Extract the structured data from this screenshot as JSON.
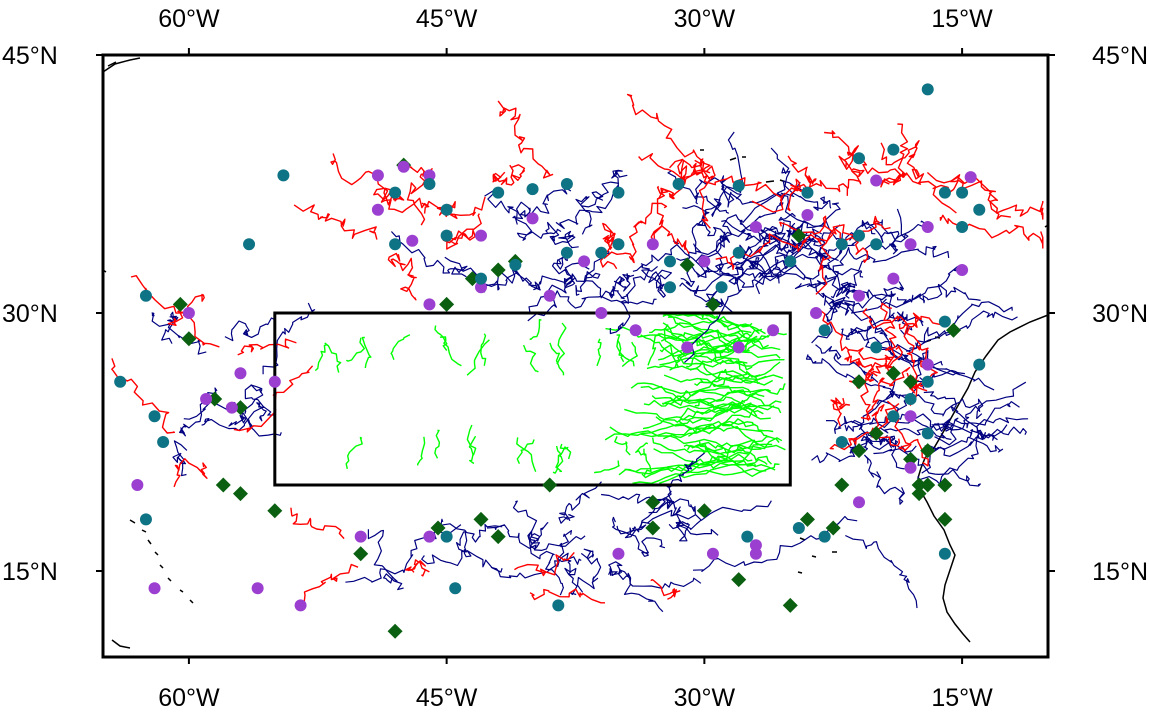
{
  "map": {
    "axes": {
      "lon_ticks": [
        {
          "lon": -60,
          "label": "60°W"
        },
        {
          "lon": -45,
          "label": "45°W"
        },
        {
          "lon": -30,
          "label": "30°W"
        },
        {
          "lon": -15,
          "label": "15°W"
        }
      ],
      "lat_ticks": [
        {
          "lat": 45,
          "label": "45°N"
        },
        {
          "lat": 30,
          "label": "30°N"
        },
        {
          "lat": 15,
          "label": "15°N"
        }
      ],
      "lon_range": [
        -65,
        -10
      ],
      "lat_range": [
        10,
        45
      ]
    },
    "release_box": {
      "lon_min": -55,
      "lon_max": -25,
      "lat_min": 20,
      "lat_max": 30,
      "color": "#000000"
    },
    "colors": {
      "track_red": "#ff0000",
      "track_navy": "#000080",
      "track_green": "#00ff00",
      "end_teal": "#0e7384",
      "end_purple": "#9b3fd0",
      "end_diamond": "#0a6010",
      "coast": "#000000"
    },
    "markers": {
      "teal_circles": [
        [
          -62.5,
          31
        ],
        [
          -61.5,
          22.5
        ],
        [
          -62,
          24
        ],
        [
          -64,
          26
        ],
        [
          -56.5,
          34
        ],
        [
          -54.5,
          38
        ],
        [
          -48,
          37
        ],
        [
          -46,
          37.5
        ],
        [
          -45,
          36
        ],
        [
          -42,
          37
        ],
        [
          -40,
          37.2
        ],
        [
          -38,
          37.5
        ],
        [
          -35,
          37
        ],
        [
          -31.5,
          37.5
        ],
        [
          -28,
          37.4
        ],
        [
          -24,
          37
        ],
        [
          -21,
          39
        ],
        [
          -19,
          39.5
        ],
        [
          -17,
          43
        ],
        [
          -16,
          37
        ],
        [
          -15,
          37
        ],
        [
          -14,
          36
        ],
        [
          -15,
          35
        ],
        [
          -20,
          34
        ],
        [
          -21,
          34.5
        ],
        [
          -22,
          34
        ],
        [
          -25,
          33
        ],
        [
          -28,
          33.5
        ],
        [
          -32,
          33
        ],
        [
          -36,
          33.5
        ],
        [
          -38,
          33.5
        ],
        [
          -41,
          32.8
        ],
        [
          -43,
          32
        ],
        [
          -45,
          34.5
        ],
        [
          -48,
          34
        ],
        [
          -35,
          34
        ],
        [
          -32,
          31.5
        ],
        [
          -29,
          31.5
        ],
        [
          -23,
          29
        ],
        [
          -20,
          28
        ],
        [
          -17,
          26
        ],
        [
          -18,
          25
        ],
        [
          -16,
          29.5
        ],
        [
          -14,
          27
        ],
        [
          -17,
          23
        ],
        [
          -19,
          24
        ],
        [
          -22,
          22.5
        ],
        [
          -45,
          17
        ],
        [
          -44.5,
          14
        ],
        [
          -38.5,
          13
        ],
        [
          -27.5,
          17
        ],
        [
          -24.5,
          17.5
        ],
        [
          -23,
          17
        ],
        [
          -16,
          16
        ],
        [
          -62.5,
          18
        ]
      ],
      "purple_circles": [
        [
          -60,
          30
        ],
        [
          -57,
          26.5
        ],
        [
          -57.5,
          24.5
        ],
        [
          -63,
          20
        ],
        [
          -62,
          14
        ],
        [
          -56,
          14
        ],
        [
          -53.5,
          13
        ],
        [
          -50,
          17
        ],
        [
          -46,
          17
        ],
        [
          -46,
          38
        ],
        [
          -47.5,
          38.5
        ],
        [
          -49,
          38
        ],
        [
          -49,
          36
        ],
        [
          -47,
          34.2
        ],
        [
          -43,
          34.5
        ],
        [
          -40,
          35.5
        ],
        [
          -37,
          33
        ],
        [
          -33,
          34
        ],
        [
          -30,
          33
        ],
        [
          -27,
          35
        ],
        [
          -24,
          35.7
        ],
        [
          -20,
          37.7
        ],
        [
          -18,
          34
        ],
        [
          -17,
          35
        ],
        [
          -14.5,
          37.9
        ],
        [
          -15,
          32.5
        ],
        [
          -19,
          32
        ],
        [
          -21,
          31
        ],
        [
          -23.5,
          30
        ],
        [
          -26,
          29
        ],
        [
          -28,
          28
        ],
        [
          -31,
          28
        ],
        [
          -34,
          29
        ],
        [
          -36,
          30
        ],
        [
          -39,
          31
        ],
        [
          -43,
          31.5
        ],
        [
          -46,
          30.5
        ],
        [
          -18,
          24
        ],
        [
          -17,
          27
        ],
        [
          -18,
          21
        ],
        [
          -21,
          19
        ],
        [
          -35,
          16
        ],
        [
          -29.5,
          16
        ],
        [
          -27,
          16
        ],
        [
          -27,
          16.5
        ],
        [
          -55,
          26
        ],
        [
          -59,
          25
        ]
      ],
      "green_diamonds": [
        [
          -60,
          28.5
        ],
        [
          -58.5,
          25
        ],
        [
          -57,
          24.5
        ],
        [
          -58,
          20
        ],
        [
          -57,
          19.5
        ],
        [
          -55,
          18.5
        ],
        [
          -50,
          16
        ],
        [
          -48,
          11.5
        ],
        [
          -45.5,
          17.5
        ],
        [
          -43,
          18
        ],
        [
          -42,
          17
        ],
        [
          -39,
          20
        ],
        [
          -33,
          19
        ],
        [
          -33,
          17.5
        ],
        [
          -30,
          18.5
        ],
        [
          -28,
          14.5
        ],
        [
          -25,
          13
        ],
        [
          -24,
          18
        ],
        [
          -22.5,
          17.5
        ],
        [
          -22,
          20
        ],
        [
          -21,
          22
        ],
        [
          -20,
          23
        ],
        [
          -21,
          26
        ],
        [
          -19,
          26.5
        ],
        [
          -18,
          26
        ],
        [
          -17.5,
          20
        ],
        [
          -17.5,
          19.5
        ],
        [
          -18,
          21.5
        ],
        [
          -17,
          22
        ],
        [
          -17,
          20
        ],
        [
          -16,
          20
        ],
        [
          -16,
          18
        ],
        [
          -15.5,
          29
        ],
        [
          -43.5,
          32
        ],
        [
          -41,
          33
        ],
        [
          -31,
          32.8
        ],
        [
          -29.5,
          30.5
        ],
        [
          -24.5,
          34.5
        ],
        [
          -45,
          30.5
        ],
        [
          -47.5,
          38.6
        ],
        [
          -42,
          32.5
        ],
        [
          -60.5,
          30.5
        ]
      ]
    }
  }
}
